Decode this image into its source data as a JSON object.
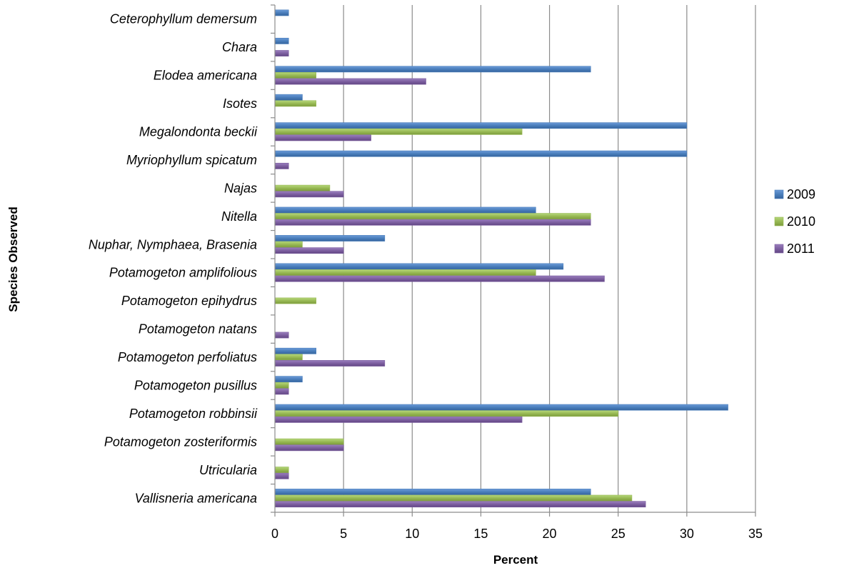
{
  "chart_data": {
    "type": "bar",
    "orientation": "horizontal",
    "categories": [
      "Ceterophyllum demersum",
      "Chara",
      "Elodea americana",
      "Isotes",
      "Megalondonta beckii",
      "Myriophyllum spicatum",
      "Najas",
      "Nitella",
      "Nuphar, Nymphaea, Brasenia",
      "Potamogeton amplifolious",
      "Potamogeton epihydrus",
      "Potamogeton natans",
      "Potamogeton perfoliatus",
      "Potamogeton pusillus",
      "Potamogeton robbinsii",
      "Potamogeton zosteriformis",
      "Utricularia",
      "Vallisneria americana"
    ],
    "series": [
      {
        "name": "2009",
        "color": "#4a7ebb",
        "values": [
          1,
          1,
          23,
          2,
          30,
          30,
          0,
          19,
          8,
          21,
          0,
          0,
          3,
          2,
          33,
          0,
          0,
          23
        ]
      },
      {
        "name": "2010",
        "color": "#98b954",
        "values": [
          0,
          0,
          3,
          3,
          18,
          0,
          4,
          23,
          2,
          19,
          3,
          0,
          2,
          1,
          25,
          5,
          1,
          26
        ]
      },
      {
        "name": "2011",
        "color": "#7d5fa0",
        "values": [
          0,
          1,
          11,
          0,
          7,
          1,
          5,
          23,
          5,
          24,
          0,
          1,
          8,
          1,
          18,
          5,
          1,
          27
        ]
      }
    ],
    "xlabel": "Percent",
    "ylabel": "Species Observed",
    "xlim": [
      0,
      35
    ],
    "xticks": [
      0,
      5,
      10,
      15,
      20,
      25,
      30,
      35
    ],
    "grid": "vertical gridlines",
    "legend_position": "right"
  }
}
